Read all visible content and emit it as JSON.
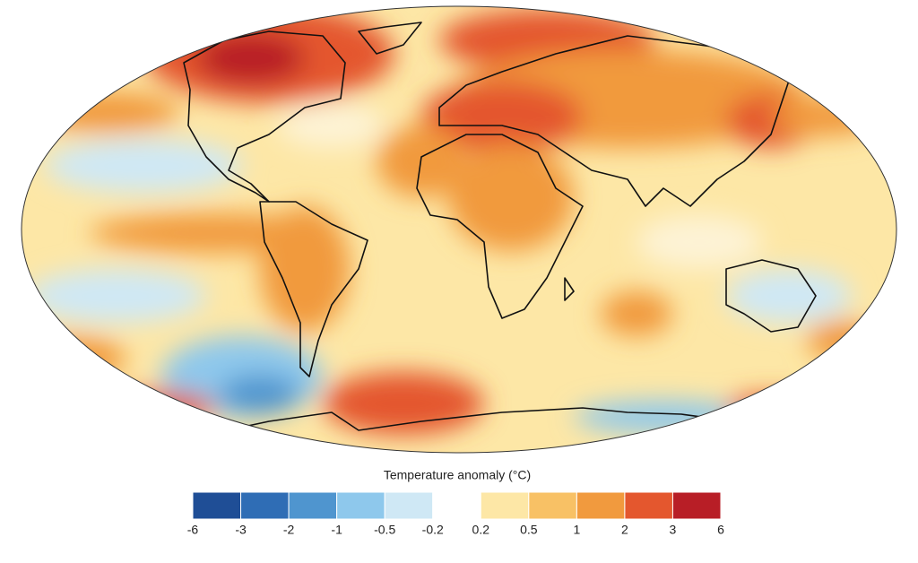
{
  "legend": {
    "title": "Temperature anomaly (°C)",
    "ticks": [
      -6,
      -3,
      -2,
      -1,
      -0.5,
      -0.2,
      0.2,
      0.5,
      1,
      2,
      3,
      6
    ],
    "colors": [
      "#1f4e96",
      "#2f6db5",
      "#4f95cf",
      "#8ec8ec",
      "#cfe8f5",
      "#ffffff",
      "#fde7a6",
      "#f8c165",
      "#f19a3e",
      "#e4572e",
      "#b81e26"
    ]
  }
}
